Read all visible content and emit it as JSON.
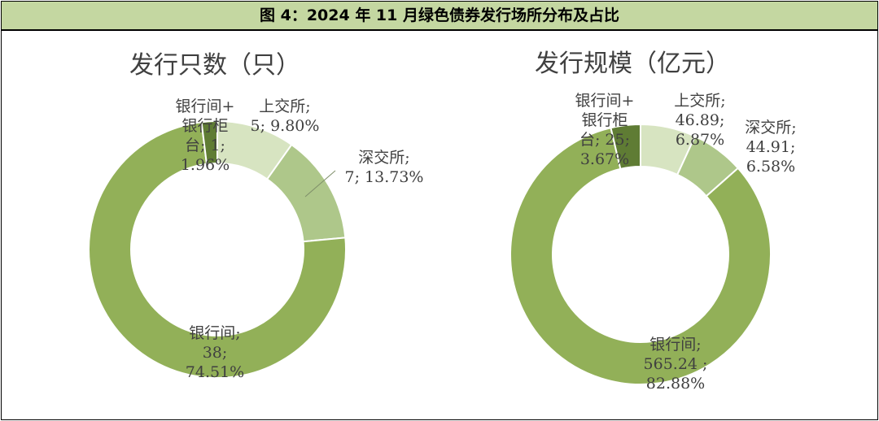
{
  "figure_title": "图 4：2024 年 11 月绿色债券发行场所分布及占比",
  "colors": {
    "title_bg": "#c4d7a1",
    "segments": [
      "#d7e4c1",
      "#aec78a",
      "#92b058",
      "#5f7c34"
    ],
    "label_text": "#404040"
  },
  "chart_data": [
    {
      "type": "pie",
      "subtype": "donut",
      "title": "发行只数（只）",
      "categories": [
        "上交所",
        "深交所",
        "银行间",
        "银行间+银行柜台"
      ],
      "values": [
        5,
        7,
        38,
        1
      ],
      "percents": [
        "9.80%",
        "13.73%",
        "74.51%",
        "1.96%"
      ],
      "labels": [
        [
          "上交所;",
          "5; 9.80%"
        ],
        [
          "深交所;",
          "7; 13.73%"
        ],
        [
          "银行间;",
          "38;",
          "74.51%"
        ],
        [
          "银行间+",
          "银行柜",
          "台; 1;",
          "1.96%"
        ]
      ]
    },
    {
      "type": "pie",
      "subtype": "donut",
      "title": "发行规模（亿元）",
      "categories": [
        "上交所",
        "深交所",
        "银行间",
        "银行间+银行柜台"
      ],
      "values": [
        46.89,
        44.91,
        565.24,
        25
      ],
      "percents": [
        "6.87%",
        "6.58%",
        "82.88%",
        "3.67%"
      ],
      "labels": [
        [
          "上交所;",
          "46.89;",
          "6.87%"
        ],
        [
          "深交所;",
          "44.91;",
          "6.58%"
        ],
        [
          "银行间;",
          "565.24 ;",
          "82.88%"
        ],
        [
          "银行间+",
          "银行柜",
          "台; 25;",
          "3.67%"
        ]
      ]
    }
  ]
}
